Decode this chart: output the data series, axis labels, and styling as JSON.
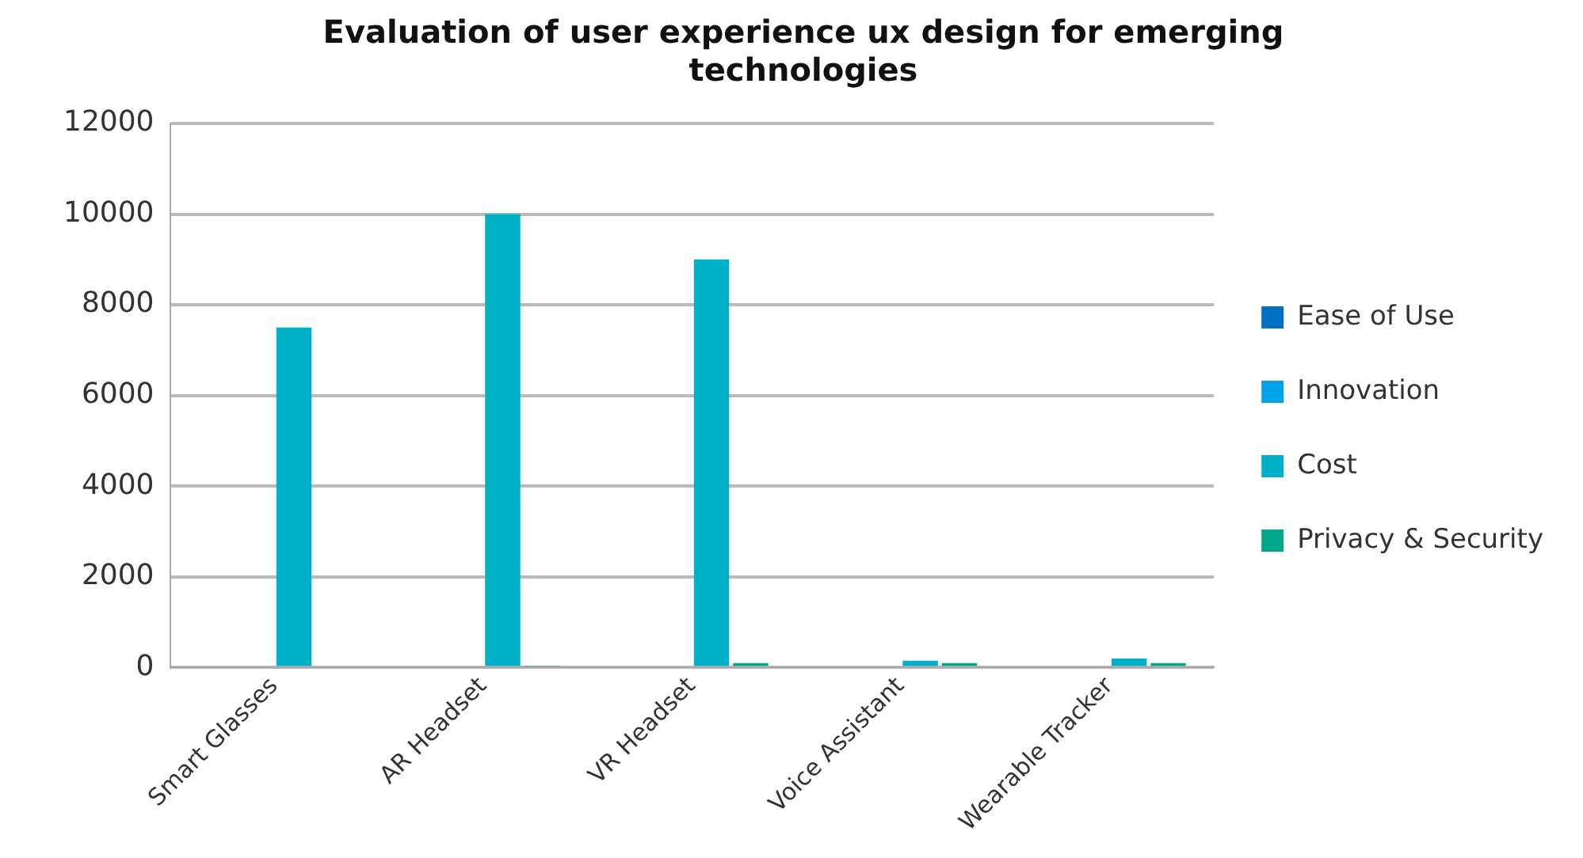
{
  "chart_data": {
    "type": "bar",
    "title": "Evaluation of user experience ux design for emerging technologies",
    "categories": [
      "Smart Glasses",
      "AR Headset",
      "VR Headset",
      "Voice Assistant",
      "Wearable Tracker"
    ],
    "series": [
      {
        "name": "Ease of Use",
        "color": "#0070c0",
        "values": [
          0,
          0,
          0,
          0,
          0
        ]
      },
      {
        "name": "Innovation",
        "color": "#00a2e8",
        "values": [
          0,
          0,
          0,
          0,
          0
        ]
      },
      {
        "name": "Cost",
        "color": "#00b0c8",
        "values": [
          7500,
          10000,
          9000,
          150,
          200
        ]
      },
      {
        "name": "Privacy & Security",
        "color": "#00a88a",
        "values": [
          0,
          30,
          100,
          100,
          100
        ]
      }
    ],
    "ylim": [
      0,
      12000
    ],
    "yticks": [
      0,
      2000,
      4000,
      6000,
      8000,
      10000,
      12000
    ],
    "grid": "y",
    "legend": "right"
  }
}
